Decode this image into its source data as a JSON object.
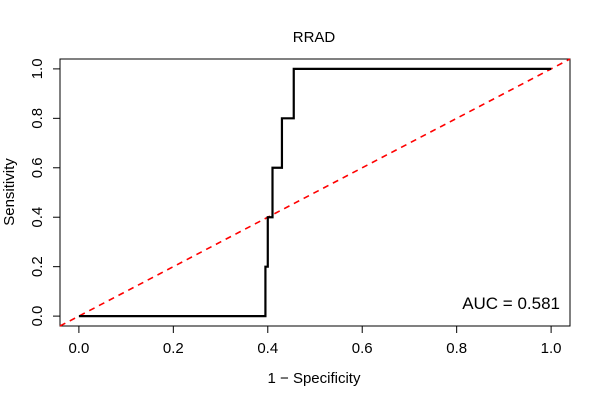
{
  "chart_data": {
    "type": "line",
    "title": "RRAD",
    "xlabel": "1 − Specificity",
    "ylabel": "Sensitivity",
    "xlim": [
      -0.04,
      1.04
    ],
    "ylim": [
      -0.04,
      1.04
    ],
    "xticks": [
      0.0,
      0.2,
      0.4,
      0.6,
      0.8,
      1.0
    ],
    "xtick_labels": [
      "0.0",
      "0.2",
      "0.4",
      "0.6",
      "0.8",
      "1.0"
    ],
    "yticks": [
      0.0,
      0.2,
      0.4,
      0.6,
      0.8,
      1.0
    ],
    "ytick_labels": [
      "0.0",
      "0.2",
      "0.4",
      "0.6",
      "0.8",
      "1.0"
    ],
    "grid": false,
    "series": [
      {
        "style": "solid",
        "color": "#000000",
        "x": [
          0.0,
          0.395,
          0.395,
          0.4,
          0.4,
          0.41,
          0.41,
          0.43,
          0.43,
          0.455,
          0.455,
          1.0
        ],
        "y": [
          0.0,
          0.0,
          0.2,
          0.2,
          0.4,
          0.4,
          0.6,
          0.6,
          0.8,
          0.8,
          1.0,
          1.0
        ]
      },
      {
        "style": "dashed",
        "color": "#ff0000",
        "x": [
          -0.04,
          1.04
        ],
        "y": [
          -0.04,
          1.04
        ]
      }
    ],
    "annotation": {
      "text": "AUC = 0.581"
    }
  }
}
